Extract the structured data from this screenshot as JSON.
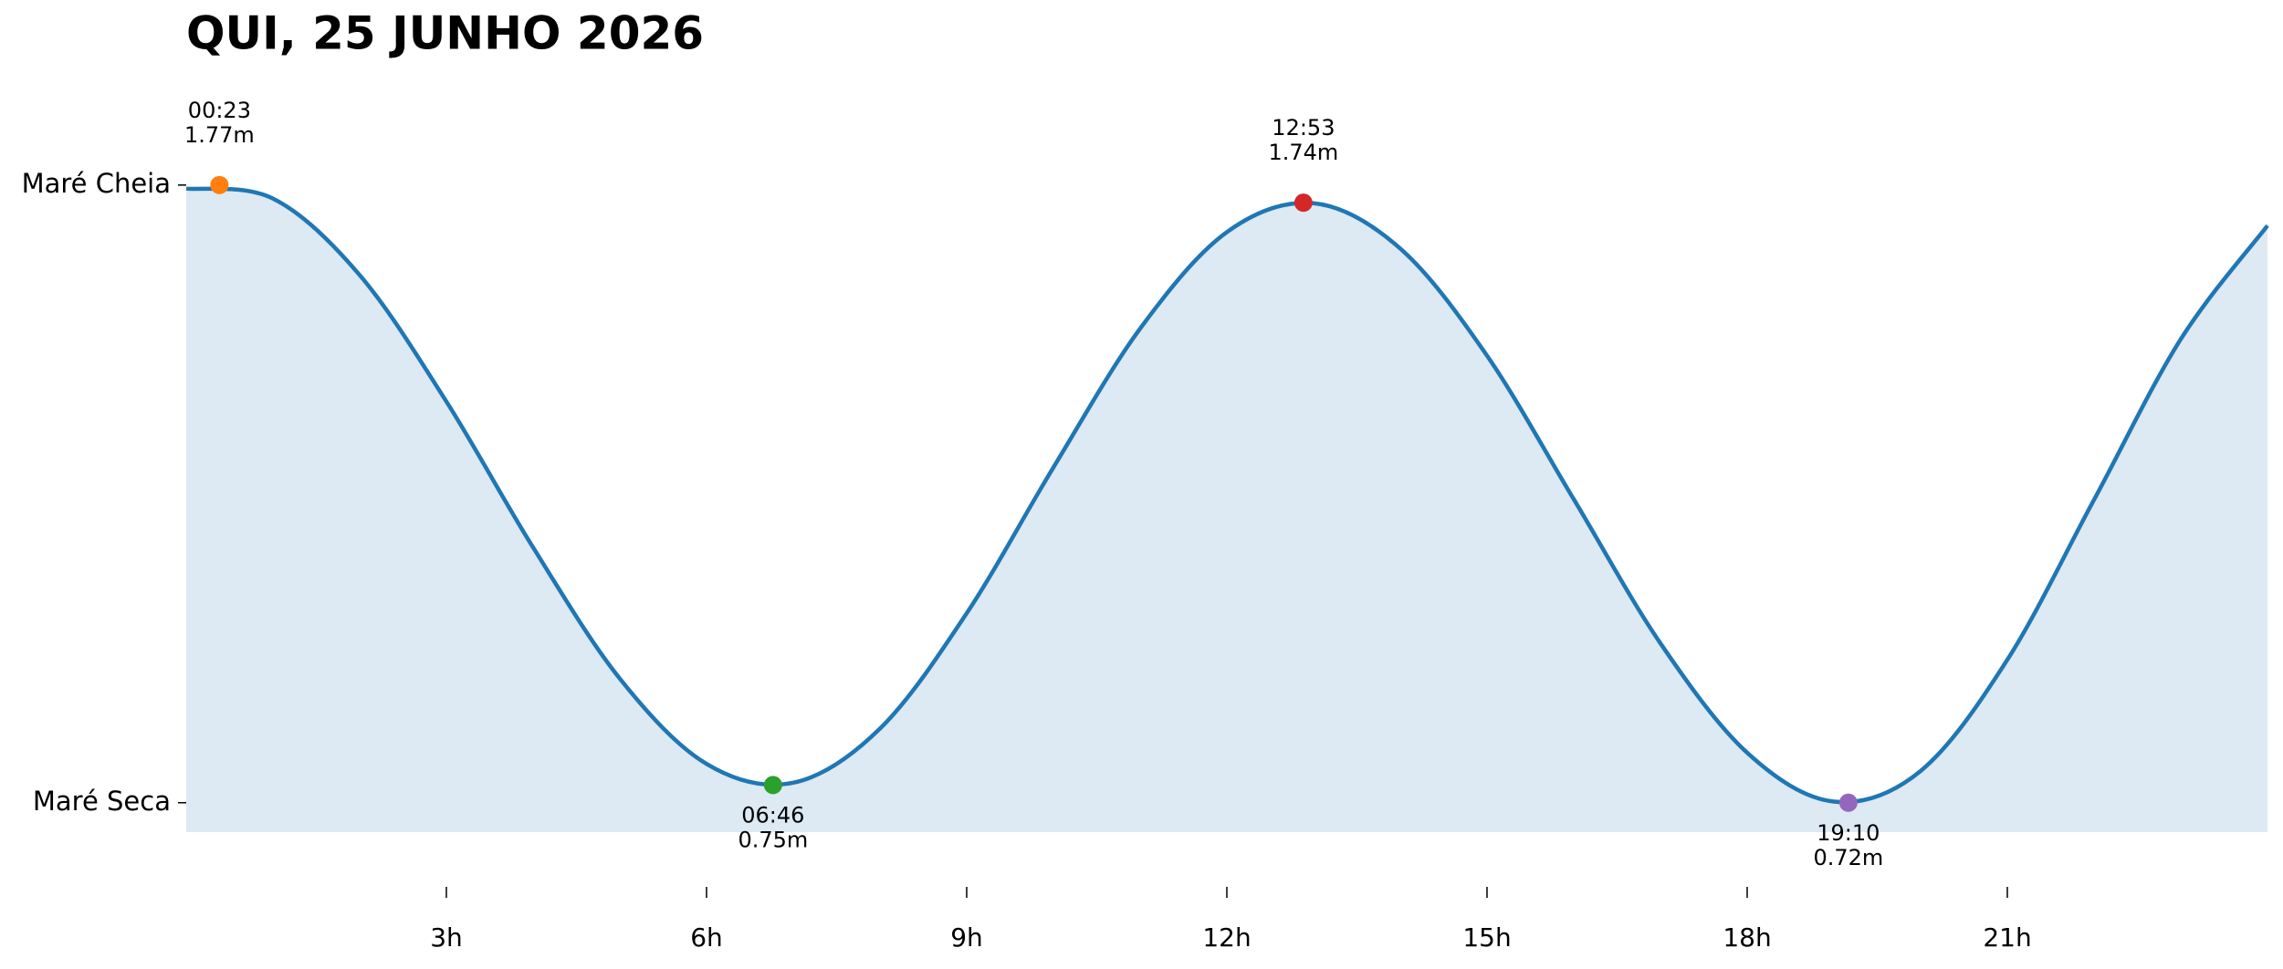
{
  "chart_data": {
    "type": "line",
    "title": "QUI, 25 JUNHO 2026",
    "series": [
      {
        "color": "#1f77b4",
        "fill": true,
        "fill_color": "#dde9f3",
        "x": [
          0,
          1,
          2,
          3,
          4,
          5,
          6,
          7,
          8,
          9,
          10,
          11,
          12,
          13,
          14,
          15,
          16,
          17,
          18,
          19,
          20,
          21,
          22,
          23,
          24
        ],
        "values": [
          1.764,
          1.747,
          1.617,
          1.402,
          1.154,
          0.931,
          0.786,
          0.754,
          0.846,
          1.042,
          1.29,
          1.526,
          1.69,
          1.739,
          1.662,
          1.48,
          1.236,
          0.991,
          0.805,
          0.722,
          0.774,
          0.963,
          1.235,
          1.508,
          1.701
        ]
      }
    ],
    "tide_extremes": {
      "x": [
        0.383,
        6.767,
        12.883,
        19.167
      ],
      "times": [
        "00:23",
        "06:46",
        "12:53",
        "19:10"
      ],
      "values": [
        1.77,
        0.75,
        1.74,
        0.72
      ],
      "value_labels": [
        "1.77m",
        "0.75m",
        "1.74m",
        "0.72m"
      ],
      "colors": [
        "#ff7f0e",
        "#2ca02c",
        "#d62728",
        "#9467bd"
      ]
    },
    "xlim": [
      0,
      24
    ],
    "xticks": [
      {
        "value": 3,
        "label": "3h"
      },
      {
        "value": 6,
        "label": "6h"
      },
      {
        "value": 9,
        "label": "9h"
      },
      {
        "value": 12,
        "label": "12h"
      },
      {
        "value": 15,
        "label": "15h"
      },
      {
        "value": 18,
        "label": "18h"
      },
      {
        "value": 21,
        "label": "21h"
      }
    ],
    "ylim": [
      0.67,
      1.9
    ],
    "yticks": [
      {
        "value": 1.77,
        "label": "Maré Cheia"
      },
      {
        "value": 0.72,
        "label": "Maré Seca"
      }
    ],
    "grid": false
  }
}
